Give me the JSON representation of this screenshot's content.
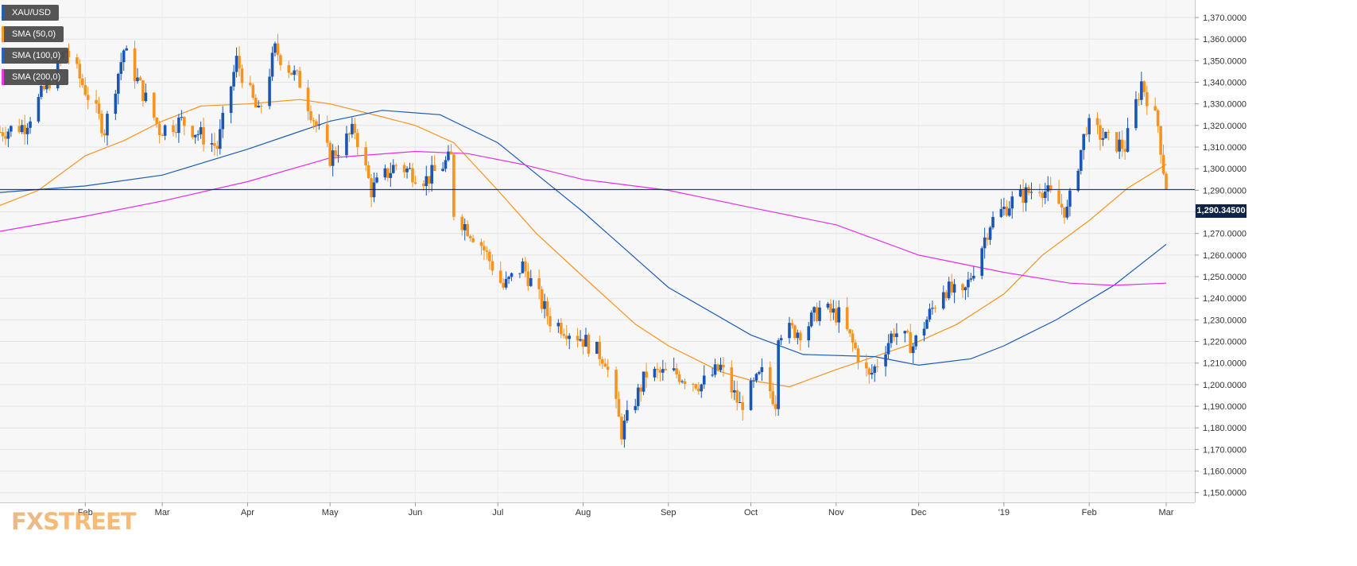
{
  "legend": {
    "items": [
      {
        "label": "XAU/USD",
        "color": "#1a56b5"
      },
      {
        "label": "SMA (50,0)",
        "color": "#f7931e"
      },
      {
        "label": "SMA (100,0)",
        "color": "#1c5bb8"
      },
      {
        "label": "SMA (200,0)",
        "color": "#e62ee6"
      }
    ]
  },
  "watermark": {
    "fx": "FX",
    "street": "STREET"
  },
  "price_tag": "1,290.34500",
  "chart_data": {
    "type": "candlestick",
    "title": "",
    "xlabel": "",
    "ylabel": "",
    "ylim": [
      1145,
      1375
    ],
    "y_ticks": [
      1150,
      1160,
      1170,
      1180,
      1190,
      1200,
      1210,
      1220,
      1230,
      1240,
      1250,
      1260,
      1270,
      1280,
      1290,
      1300,
      1310,
      1320,
      1330,
      1340,
      1350,
      1360,
      1370
    ],
    "x_ticks": [
      {
        "label": "Feb",
        "date": "2018-02-01"
      },
      {
        "label": "Mar",
        "date": "2018-03-01"
      },
      {
        "label": "Apr",
        "date": "2018-04-01"
      },
      {
        "label": "May",
        "date": "2018-05-01"
      },
      {
        "label": "Jun",
        "date": "2018-06-01"
      },
      {
        "label": "Jul",
        "date": "2018-07-01"
      },
      {
        "label": "Aug",
        "date": "2018-08-01"
      },
      {
        "label": "Sep",
        "date": "2018-09-01"
      },
      {
        "label": "Oct",
        "date": "2018-10-01"
      },
      {
        "label": "Nov",
        "date": "2018-11-01"
      },
      {
        "label": "Dec",
        "date": "2018-12-01"
      },
      {
        "label": "'19",
        "date": "2019-01-01"
      },
      {
        "label": "Feb",
        "date": "2019-02-01"
      },
      {
        "label": "Mar",
        "date": "2019-03-01"
      }
    ],
    "date_range": [
      "2018-01-01",
      "2019-03-01"
    ],
    "horizontal_line": 1290.345,
    "up_color": "#1a56b5",
    "down_color": "#f7931e",
    "price_path": [
      {
        "date": "2018-01-01",
        "value": 1317
      },
      {
        "date": "2018-01-10",
        "value": 1320
      },
      {
        "date": "2018-01-25",
        "value": 1355
      },
      {
        "date": "2018-02-08",
        "value": 1318
      },
      {
        "date": "2018-02-15",
        "value": 1355
      },
      {
        "date": "2018-02-28",
        "value": 1318
      },
      {
        "date": "2018-03-08",
        "value": 1322
      },
      {
        "date": "2018-03-21",
        "value": 1310
      },
      {
        "date": "2018-03-28",
        "value": 1350
      },
      {
        "date": "2018-04-05",
        "value": 1325
      },
      {
        "date": "2018-04-11",
        "value": 1355
      },
      {
        "date": "2018-04-20",
        "value": 1340
      },
      {
        "date": "2018-04-26",
        "value": 1320
      },
      {
        "date": "2018-05-01",
        "value": 1305
      },
      {
        "date": "2018-05-10",
        "value": 1318
      },
      {
        "date": "2018-05-16",
        "value": 1290
      },
      {
        "date": "2018-05-25",
        "value": 1302
      },
      {
        "date": "2018-06-05",
        "value": 1295
      },
      {
        "date": "2018-06-14",
        "value": 1305
      },
      {
        "date": "2018-06-15",
        "value": 1280
      },
      {
        "date": "2018-06-25",
        "value": 1265
      },
      {
        "date": "2018-07-03",
        "value": 1245
      },
      {
        "date": "2018-07-10",
        "value": 1255
      },
      {
        "date": "2018-07-20",
        "value": 1230
      },
      {
        "date": "2018-07-31",
        "value": 1222
      },
      {
        "date": "2018-08-09",
        "value": 1212
      },
      {
        "date": "2018-08-15",
        "value": 1178
      },
      {
        "date": "2018-08-24",
        "value": 1205
      },
      {
        "date": "2018-09-04",
        "value": 1205
      },
      {
        "date": "2018-09-13",
        "value": 1200
      },
      {
        "date": "2018-09-20",
        "value": 1208
      },
      {
        "date": "2018-09-27",
        "value": 1190
      },
      {
        "date": "2018-10-05",
        "value": 1205
      },
      {
        "date": "2018-10-10",
        "value": 1192
      },
      {
        "date": "2018-10-11",
        "value": 1225
      },
      {
        "date": "2018-10-20",
        "value": 1225
      },
      {
        "date": "2018-10-26",
        "value": 1235
      },
      {
        "date": "2018-11-02",
        "value": 1232
      },
      {
        "date": "2018-11-13",
        "value": 1203
      },
      {
        "date": "2018-11-22",
        "value": 1225
      },
      {
        "date": "2018-11-29",
        "value": 1218
      },
      {
        "date": "2018-12-10",
        "value": 1245
      },
      {
        "date": "2018-12-17",
        "value": 1240
      },
      {
        "date": "2018-12-27",
        "value": 1275
      },
      {
        "date": "2019-01-04",
        "value": 1285
      },
      {
        "date": "2019-01-14",
        "value": 1292
      },
      {
        "date": "2019-01-24",
        "value": 1280
      },
      {
        "date": "2019-01-31",
        "value": 1320
      },
      {
        "date": "2019-02-08",
        "value": 1313
      },
      {
        "date": "2019-02-14",
        "value": 1310
      },
      {
        "date": "2019-02-20",
        "value": 1340
      },
      {
        "date": "2019-02-26",
        "value": 1320
      },
      {
        "date": "2019-03-01",
        "value": 1290
      }
    ],
    "series": [
      {
        "name": "SMA (50,0)",
        "color": "#f7931e",
        "points": [
          [
            "2018-01-01",
            1283
          ],
          [
            "2018-01-15",
            1290
          ],
          [
            "2018-02-01",
            1306
          ],
          [
            "2018-02-15",
            1313
          ],
          [
            "2018-03-01",
            1322
          ],
          [
            "2018-03-15",
            1329
          ],
          [
            "2018-04-01",
            1330
          ],
          [
            "2018-04-20",
            1332
          ],
          [
            "2018-05-01",
            1330
          ],
          [
            "2018-05-20",
            1324
          ],
          [
            "2018-06-01",
            1320
          ],
          [
            "2018-06-15",
            1312
          ],
          [
            "2018-07-01",
            1290
          ],
          [
            "2018-07-15",
            1270
          ],
          [
            "2018-08-01",
            1250
          ],
          [
            "2018-08-20",
            1228
          ],
          [
            "2018-09-01",
            1218
          ],
          [
            "2018-09-20",
            1206
          ],
          [
            "2018-10-01",
            1202
          ],
          [
            "2018-10-15",
            1199
          ],
          [
            "2018-11-01",
            1207
          ],
          [
            "2018-11-15",
            1213
          ],
          [
            "2018-12-01",
            1220
          ],
          [
            "2018-12-15",
            1228
          ],
          [
            "2019-01-01",
            1242
          ],
          [
            "2019-01-15",
            1260
          ],
          [
            "2019-02-01",
            1276
          ],
          [
            "2019-02-15",
            1291
          ],
          [
            "2019-03-01",
            1302
          ]
        ]
      },
      {
        "name": "SMA (100,0)",
        "color": "#1c5bb8",
        "points": [
          [
            "2018-01-01",
            1289
          ],
          [
            "2018-02-01",
            1292
          ],
          [
            "2018-03-01",
            1297
          ],
          [
            "2018-04-01",
            1309
          ],
          [
            "2018-05-01",
            1322
          ],
          [
            "2018-05-20",
            1327
          ],
          [
            "2018-06-10",
            1325
          ],
          [
            "2018-07-01",
            1312
          ],
          [
            "2018-08-01",
            1280
          ],
          [
            "2018-09-01",
            1245
          ],
          [
            "2018-10-01",
            1223
          ],
          [
            "2018-10-20",
            1214
          ],
          [
            "2018-11-15",
            1213
          ],
          [
            "2018-12-01",
            1209
          ],
          [
            "2018-12-20",
            1212
          ],
          [
            "2019-01-01",
            1218
          ],
          [
            "2019-01-20",
            1230
          ],
          [
            "2019-02-10",
            1246
          ],
          [
            "2019-03-01",
            1265
          ]
        ]
      },
      {
        "name": "SMA (200,0)",
        "color": "#e62ee6",
        "points": [
          [
            "2018-01-01",
            1271
          ],
          [
            "2018-02-01",
            1278
          ],
          [
            "2018-03-01",
            1285
          ],
          [
            "2018-04-01",
            1294
          ],
          [
            "2018-05-01",
            1305
          ],
          [
            "2018-06-01",
            1308
          ],
          [
            "2018-06-20",
            1307
          ],
          [
            "2018-07-10",
            1302
          ],
          [
            "2018-08-01",
            1295
          ],
          [
            "2018-09-01",
            1290
          ],
          [
            "2018-10-01",
            1282
          ],
          [
            "2018-11-01",
            1274
          ],
          [
            "2018-12-01",
            1260
          ],
          [
            "2019-01-01",
            1252
          ],
          [
            "2019-01-25",
            1247
          ],
          [
            "2019-02-10",
            1246
          ],
          [
            "2019-03-01",
            1247
          ]
        ]
      }
    ]
  }
}
